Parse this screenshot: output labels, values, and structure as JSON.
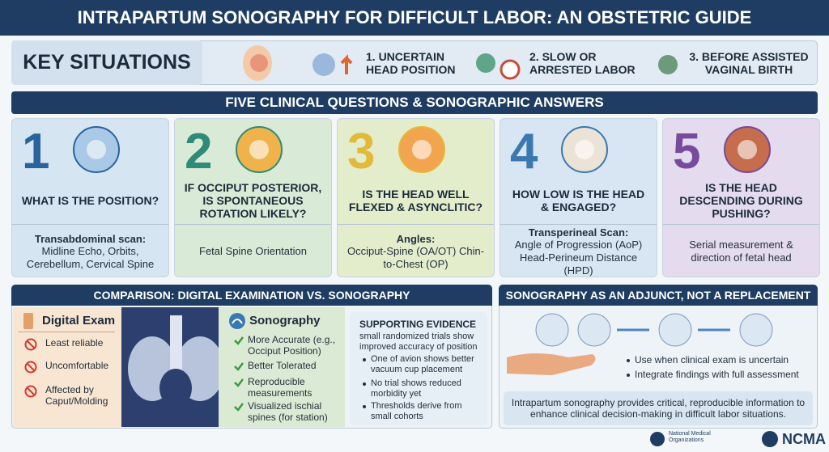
{
  "header": {
    "title": "INTRAPARTUM SONOGRAPHY FOR DIFFICULT LABOR: AN OBSTETRIC GUIDE"
  },
  "key_situations": {
    "label": "KEY SITUATIONS",
    "items": [
      "1. UNCERTAIN HEAD POSITION",
      "2. SLOW OR ARRESTED LABOR",
      "3. BEFORE ASSISTED VAGINAL BIRTH"
    ]
  },
  "questions": {
    "title": "FIVE CLINICAL QUESTIONS & SONOGRAPHIC ANSWERS",
    "cards": [
      {
        "number": 1,
        "question": "WHAT IS THE POSITION?",
        "answer_title": "Transabdominal scan:",
        "answer": "Midline Echo, Orbits, Cerebellum, Cervical Spine"
      },
      {
        "number": 2,
        "question": "IF OCCIPUT POSTERIOR, IS SPONTANEOUS ROTATION LIKELY?",
        "answer": "Fetal Spine Orientation"
      },
      {
        "number": 3,
        "question": "IS THE HEAD WELL FLEXED & ASYNCLITIC?",
        "answer_title": "Angles:",
        "answer": "Occiput-Spine (OA/OT) Chin-to-Chest (OP)"
      },
      {
        "number": 4,
        "question": "HOW LOW IS THE HEAD & ENGAGED?",
        "answer_title": "Transperineal Scan:",
        "answer": "Angle of Progression (AoP) Head-Perineum Distance (HPD)"
      },
      {
        "number": 5,
        "question": "IS THE HEAD DESCENDING DURING PUSHING?",
        "answer": "Serial measurement & direction of fetal head"
      }
    ]
  },
  "comparison": {
    "title": "COMPARISON: DIGITAL EXAMINATION VS. SONOGRAPHY",
    "digital": {
      "title": "Digital Exam",
      "items": [
        "Least reliable",
        "Uncomfortable",
        "Affected by Caput/Molding"
      ]
    },
    "sonography": {
      "title": "Sonography",
      "items": [
        "More Accurate (e.g., Occiput Position)",
        "Better Tolerated",
        "Reproducible measurements",
        "Visualized ischial spines (for station)"
      ]
    },
    "evidence": {
      "title": "SUPPORTING EVIDENCE",
      "intro": "small randomized trials show improved accuracy of position",
      "items": [
        "One of avion shows better vacuum cup placement",
        "No trial shows reduced morbidity yet",
        "Thresholds derive from small cohorts"
      ]
    }
  },
  "adjunct": {
    "title": "SONOGRAPHY AS AN ADJUNCT, NOT A REPLACEMENT",
    "items": [
      "Use when clinical exam is uncertain",
      "Integrate findings with full assessment"
    ],
    "summary": "Intrapartum sonography provides critical, reproducible information to enhance clinical decision-making in difficult labor situations."
  },
  "footer": {
    "logos": [
      "National Medical Organizations",
      "NCMA"
    ]
  }
}
